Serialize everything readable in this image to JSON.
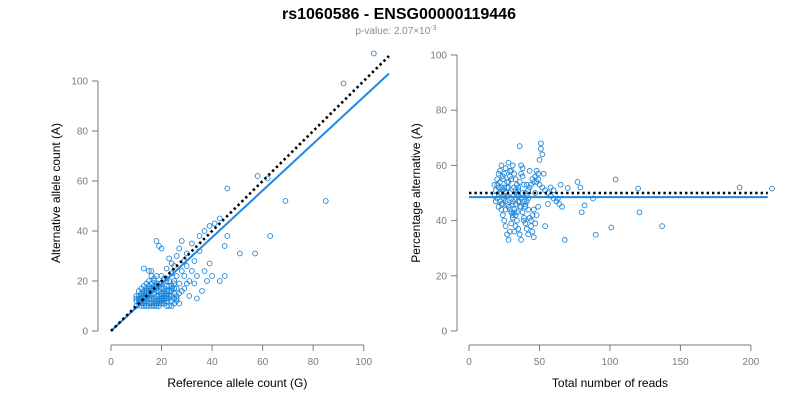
{
  "header": {
    "title": "rs1060586 - ENSG00000119446",
    "pvalue_prefix": "p-value: 2.07×10",
    "pvalue_exponent": "-3"
  },
  "colors": {
    "points": "#1f86d8",
    "fit_line": "#1e88e5",
    "reference_line": "#000000"
  },
  "chart_data": [
    {
      "type": "scatter",
      "title": "",
      "xlabel": "Reference allele count (G)",
      "ylabel": "Alternative allele count (A)",
      "xlim": [
        0,
        110
      ],
      "ylim": [
        0,
        110
      ],
      "xticks": [
        0,
        20,
        40,
        60,
        80,
        100
      ],
      "yticks": [
        0,
        20,
        40,
        60,
        80,
        100
      ],
      "grid": false,
      "lines": [
        {
          "name": "fit",
          "style": "solid",
          "color": "#1e88e5",
          "x": [
            0,
            110
          ],
          "y": [
            0,
            103
          ]
        },
        {
          "name": "expected",
          "style": "dotted",
          "color": "#000000",
          "x": [
            0,
            110
          ],
          "y": [
            0,
            110
          ]
        }
      ],
      "points": [
        [
          104,
          111
        ],
        [
          92,
          99
        ],
        [
          85,
          52
        ],
        [
          69,
          52
        ],
        [
          62,
          61
        ],
        [
          58,
          62
        ],
        [
          57,
          31
        ],
        [
          46,
          57
        ],
        [
          45,
          34
        ],
        [
          45,
          22
        ],
        [
          43,
          45
        ],
        [
          46,
          38
        ],
        [
          51,
          31
        ],
        [
          63,
          38
        ],
        [
          41,
          43
        ],
        [
          18,
          36
        ],
        [
          19,
          34
        ],
        [
          20,
          33
        ],
        [
          16,
          24
        ],
        [
          18,
          22
        ],
        [
          22,
          21
        ],
        [
          19,
          19
        ],
        [
          17,
          21
        ],
        [
          15,
          24
        ],
        [
          13,
          25
        ],
        [
          24,
          27
        ],
        [
          26,
          30
        ],
        [
          30,
          31
        ],
        [
          28,
          36
        ],
        [
          31,
          20
        ],
        [
          33,
          19
        ],
        [
          34,
          22
        ],
        [
          32,
          24
        ],
        [
          30,
          19
        ],
        [
          29,
          17
        ],
        [
          37,
          24
        ],
        [
          39,
          27
        ],
        [
          40,
          22
        ],
        [
          35,
          32
        ],
        [
          25,
          26
        ],
        [
          26,
          22
        ],
        [
          27,
          19
        ],
        [
          28,
          16
        ],
        [
          34,
          13
        ],
        [
          31,
          14
        ],
        [
          36,
          16
        ],
        [
          38,
          20
        ],
        [
          43,
          20
        ],
        [
          39,
          42
        ],
        [
          37,
          40
        ],
        [
          35,
          38
        ],
        [
          32,
          35
        ],
        [
          29,
          28
        ],
        [
          27,
          33
        ],
        [
          26,
          17
        ],
        [
          24,
          23
        ],
        [
          23,
          29
        ],
        [
          22,
          25
        ],
        [
          20,
          22
        ],
        [
          25,
          19
        ],
        [
          21,
          14
        ],
        [
          22,
          16
        ],
        [
          23,
          20
        ],
        [
          24,
          18
        ],
        [
          25,
          15
        ],
        [
          26,
          13
        ],
        [
          27,
          11
        ],
        [
          28,
          24
        ],
        [
          29,
          22
        ],
        [
          30,
          26
        ],
        [
          33,
          28
        ],
        [
          12,
          15
        ],
        [
          13,
          18
        ],
        [
          14,
          19
        ],
        [
          15,
          20
        ],
        [
          16,
          22
        ],
        [
          17,
          18
        ],
        [
          18,
          17
        ],
        [
          19,
          16
        ],
        [
          20,
          19
        ],
        [
          21,
          21
        ],
        [
          22,
          20
        ],
        [
          23,
          18
        ],
        [
          24,
          16
        ],
        [
          25,
          20
        ],
        [
          12,
          10
        ],
        [
          13,
          11
        ],
        [
          14,
          12
        ],
        [
          15,
          13
        ],
        [
          16,
          14
        ],
        [
          17,
          15
        ],
        [
          18,
          16
        ],
        [
          19,
          13
        ],
        [
          20,
          12
        ],
        [
          21,
          11
        ],
        [
          22,
          10
        ],
        [
          23,
          10
        ],
        [
          24,
          10
        ],
        [
          11,
          12
        ],
        [
          11,
          14
        ],
        [
          12,
          13
        ],
        [
          13,
          14
        ],
        [
          14,
          15
        ],
        [
          15,
          16
        ],
        [
          16,
          17
        ],
        [
          17,
          11
        ],
        [
          18,
          12
        ],
        [
          19,
          10
        ],
        [
          20,
          15
        ],
        [
          21,
          17
        ],
        [
          22,
          18
        ],
        [
          23,
          13
        ],
        [
          24,
          12
        ],
        [
          25,
          11
        ],
        [
          26,
          12
        ],
        [
          10,
          10
        ],
        [
          10,
          12
        ],
        [
          11,
          11
        ],
        [
          12,
          11
        ],
        [
          13,
          12
        ],
        [
          14,
          13
        ],
        [
          15,
          11
        ],
        [
          16,
          10
        ],
        [
          17,
          10
        ],
        [
          18,
          10
        ],
        [
          19,
          11
        ],
        [
          20,
          11
        ],
        [
          21,
          12
        ],
        [
          22,
          13
        ],
        [
          23,
          14
        ],
        [
          24,
          14
        ],
        [
          25,
          13
        ],
        [
          26,
          14
        ],
        [
          27,
          15
        ],
        [
          10,
          14
        ],
        [
          11,
          16
        ],
        [
          12,
          17
        ],
        [
          13,
          16
        ],
        [
          14,
          17
        ],
        [
          15,
          18
        ],
        [
          16,
          19
        ],
        [
          17,
          20
        ],
        [
          18,
          19
        ],
        [
          19,
          18
        ],
        [
          20,
          17
        ],
        [
          21,
          16
        ],
        [
          22,
          15
        ],
        [
          23,
          16
        ],
        [
          24,
          17
        ],
        [
          25,
          17
        ],
        [
          10,
          13
        ],
        [
          11,
          13
        ],
        [
          12,
          12
        ],
        [
          13,
          13
        ],
        [
          14,
          14
        ],
        [
          15,
          14
        ],
        [
          16,
          13
        ],
        [
          17,
          13
        ],
        [
          18,
          14
        ],
        [
          19,
          14
        ],
        [
          20,
          14
        ],
        [
          21,
          13
        ],
        [
          22,
          12
        ],
        [
          13,
          10
        ],
        [
          14,
          10
        ],
        [
          15,
          10
        ],
        [
          16,
          11
        ],
        [
          17,
          12
        ],
        [
          18,
          11
        ],
        [
          19,
          12
        ],
        [
          20,
          13
        ],
        [
          21,
          15
        ],
        [
          22,
          14
        ],
        [
          12,
          14
        ],
        [
          13,
          15
        ],
        [
          14,
          16
        ],
        [
          15,
          17
        ],
        [
          16,
          16
        ],
        [
          17,
          17
        ],
        [
          18,
          18
        ]
      ]
    },
    {
      "type": "scatter",
      "title": "",
      "xlabel": "Total number of reads",
      "ylabel": "Percentage alternative (A)",
      "xlim": [
        0,
        215
      ],
      "ylim": [
        0,
        100
      ],
      "xticks": [
        0,
        50,
        100,
        150,
        200
      ],
      "yticks": [
        0,
        20,
        40,
        60,
        80,
        100
      ],
      "grid": false,
      "lines": [
        {
          "name": "fit",
          "style": "solid",
          "color": "#1e88e5",
          "x": [
            0,
            212
          ],
          "y": [
            48.5,
            48.5
          ]
        },
        {
          "name": "expected",
          "style": "dotted",
          "color": "#000000",
          "x": [
            0,
            212
          ],
          "y": [
            50,
            50
          ]
        }
      ],
      "points": [
        [
          215,
          51.6
        ],
        [
          192,
          52
        ],
        [
          137,
          38
        ],
        [
          121,
          43
        ],
        [
          120,
          51.6
        ],
        [
          104,
          54.9
        ],
        [
          101,
          37.5
        ],
        [
          90,
          34.9
        ],
        [
          88,
          48
        ],
        [
          82,
          45.5
        ],
        [
          80,
          43
        ],
        [
          79,
          52
        ],
        [
          77,
          54
        ],
        [
          70,
          51.8
        ],
        [
          68,
          33
        ],
        [
          65,
          53
        ],
        [
          63,
          48
        ],
        [
          60,
          51
        ],
        [
          58,
          52
        ],
        [
          56,
          46
        ],
        [
          54,
          38
        ],
        [
          53,
          57
        ],
        [
          52,
          64
        ],
        [
          51,
          66
        ],
        [
          51,
          68
        ],
        [
          50,
          62
        ],
        [
          49,
          57
        ],
        [
          48,
          54
        ],
        [
          47,
          50
        ],
        [
          46,
          44
        ],
        [
          45,
          42
        ],
        [
          44,
          40
        ],
        [
          43,
          58
        ],
        [
          42,
          48
        ],
        [
          41,
          53
        ],
        [
          40,
          45
        ],
        [
          39,
          40
        ],
        [
          38,
          56
        ],
        [
          37,
          60
        ],
        [
          36,
          67
        ],
        [
          35,
          52
        ],
        [
          34,
          43
        ],
        [
          33,
          38
        ],
        [
          32,
          36
        ],
        [
          31,
          47
        ],
        [
          30,
          55
        ],
        [
          29,
          58
        ],
        [
          28,
          61
        ],
        [
          27,
          49
        ],
        [
          26,
          44
        ],
        [
          25,
          52
        ],
        [
          24,
          56
        ],
        [
          23,
          50
        ],
        [
          22,
          47
        ],
        [
          21,
          45
        ],
        [
          20,
          53
        ],
        [
          19,
          51
        ],
        [
          18,
          49
        ],
        [
          20,
          48
        ],
        [
          21,
          52
        ],
        [
          22,
          54
        ],
        [
          23,
          46
        ],
        [
          24,
          42
        ],
        [
          25,
          40
        ],
        [
          26,
          38
        ],
        [
          27,
          35
        ],
        [
          28,
          33
        ],
        [
          29,
          36
        ],
        [
          30,
          39
        ],
        [
          31,
          41
        ],
        [
          32,
          43
        ],
        [
          33,
          46
        ],
        [
          34,
          49
        ],
        [
          35,
          51
        ],
        [
          36,
          54
        ],
        [
          37,
          57
        ],
        [
          38,
          59
        ],
        [
          39,
          53
        ],
        [
          40,
          50
        ],
        [
          41,
          47
        ],
        [
          42,
          44
        ],
        [
          43,
          41
        ],
        [
          44,
          38
        ],
        [
          45,
          36
        ],
        [
          46,
          34
        ],
        [
          47,
          39
        ],
        [
          48,
          42
        ],
        [
          49,
          45
        ],
        [
          22,
          58
        ],
        [
          23,
          60
        ],
        [
          24,
          55
        ],
        [
          25,
          57
        ],
        [
          26,
          59
        ],
        [
          27,
          54
        ],
        [
          28,
          52
        ],
        [
          29,
          50
        ],
        [
          30,
          48
        ],
        [
          31,
          46
        ],
        [
          32,
          44
        ],
        [
          33,
          42
        ],
        [
          34,
          40
        ],
        [
          35,
          37
        ],
        [
          36,
          35
        ],
        [
          37,
          33
        ],
        [
          23,
          44
        ],
        [
          24,
          46
        ],
        [
          25,
          48
        ],
        [
          26,
          50
        ],
        [
          27,
          52
        ],
        [
          28,
          54
        ],
        [
          29,
          56
        ],
        [
          30,
          58
        ],
        [
          31,
          60
        ],
        [
          32,
          57
        ],
        [
          33,
          55
        ],
        [
          34,
          53
        ],
        [
          35,
          49
        ],
        [
          36,
          47
        ],
        [
          37,
          45
        ],
        [
          38,
          43
        ],
        [
          39,
          41
        ],
        [
          40,
          39
        ],
        [
          41,
          37
        ],
        [
          42,
          35
        ],
        [
          20,
          55
        ],
        [
          21,
          57
        ],
        [
          22,
          50
        ],
        [
          23,
          52
        ],
        [
          24,
          51
        ],
        [
          25,
          49
        ],
        [
          26,
          47
        ],
        [
          27,
          46
        ],
        [
          28,
          45
        ],
        [
          29,
          44
        ],
        [
          30,
          43
        ],
        [
          31,
          42
        ],
        [
          32,
          52
        ],
        [
          33,
          51
        ],
        [
          34,
          50
        ],
        [
          35,
          47
        ],
        [
          36,
          45
        ],
        [
          37,
          48
        ],
        [
          38,
          50
        ],
        [
          39,
          47
        ],
        [
          40,
          46
        ],
        [
          41,
          49
        ],
        [
          42,
          51
        ],
        [
          43,
          52
        ],
        [
          44,
          53
        ],
        [
          45,
          55
        ],
        [
          46,
          54
        ],
        [
          47,
          56
        ],
        [
          48,
          58
        ],
        [
          49,
          55
        ],
        [
          50,
          53
        ],
        [
          52,
          52
        ],
        [
          54,
          51
        ],
        [
          56,
          50
        ],
        [
          58,
          49
        ],
        [
          60,
          48
        ],
        [
          62,
          47
        ],
        [
          64,
          46
        ],
        [
          66,
          45
        ],
        [
          18,
          53
        ],
        [
          19,
          47
        ]
      ]
    }
  ]
}
